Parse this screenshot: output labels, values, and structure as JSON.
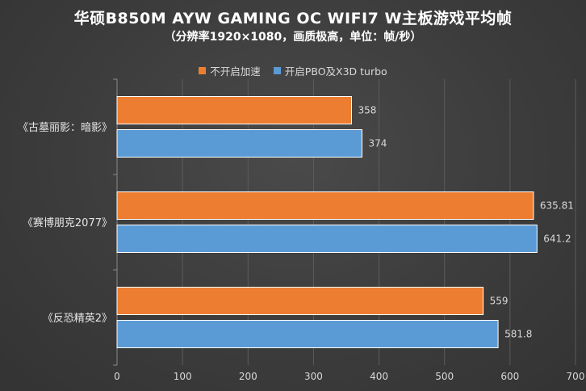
{
  "chart_data": {
    "type": "bar",
    "orientation": "horizontal",
    "title": "华硕B850M AYW GAMING OC WIFI7 W主板游戏平均帧",
    "subtitle": "（分辨率1920×1080，画质极高，单位：帧/秒）",
    "categories": [
      "《古墓丽影：暗影》",
      "《赛博朋克2077》",
      "《反恐精英2》"
    ],
    "series": [
      {
        "name": "不开启加速",
        "color": "#ed7d31",
        "values": [
          358,
          635.81,
          559
        ],
        "labels": [
          "358",
          "635.81",
          "559"
        ]
      },
      {
        "name": "开启PBO及X3D turbo",
        "color": "#5b9bd5",
        "values": [
          374,
          641.2,
          581.8
        ],
        "labels": [
          "374",
          "641.2",
          "581.8"
        ]
      }
    ],
    "xlim": [
      0,
      700
    ],
    "xticks": [
      0,
      100,
      200,
      300,
      400,
      500,
      600,
      700
    ],
    "legend_position": "top",
    "grid": true
  }
}
